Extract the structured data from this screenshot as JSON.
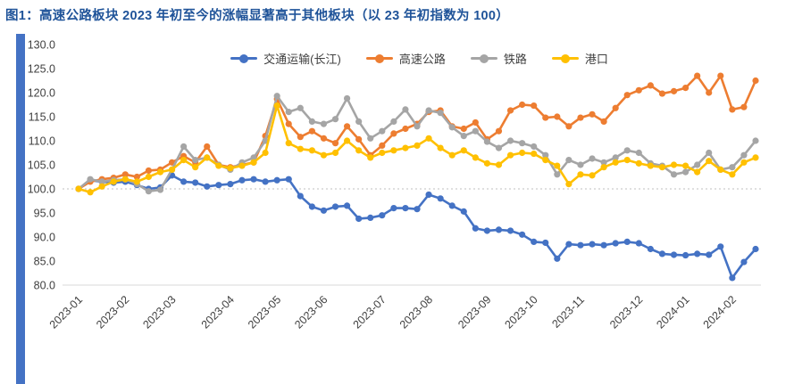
{
  "title": "图1：高速公路板块 2023 年初至今的涨幅显著高于其他板块（以 23 年初指数为 100）",
  "colors": {
    "title": "#1F5399",
    "accent_bar": "#4472C4",
    "axis_text": "#404040",
    "gridline": "#BFBFBF",
    "axis_line": "#D9D9D9"
  },
  "chart_data": {
    "type": "line",
    "title": "图1：高速公路板块 2023 年初至今的涨幅显著高于其他板块（以 23 年初指数为 100）",
    "xlabel": "",
    "ylabel": "",
    "ylim": [
      80,
      130
    ],
    "y_ticks": [
      "130.0",
      "125.0",
      "120.0",
      "115.0",
      "110.0",
      "105.0",
      "100.0",
      "95.0",
      "90.0",
      "85.0",
      "80.0"
    ],
    "y_tick_values": [
      130,
      125,
      120,
      115,
      110,
      105,
      100,
      95,
      90,
      85,
      80
    ],
    "gridline_at": 100,
    "grid": "dotted line at index 100 only",
    "legend_position": "top-center",
    "x_tick_labels": [
      "2023-01",
      "2023-02",
      "2023-03",
      "2023-04",
      "2023-05",
      "2023-06",
      "2023-07",
      "2023-08",
      "2023-09",
      "2023-10",
      "2023-11",
      "2023-12",
      "2024-01",
      "2024-02"
    ],
    "x_tick_indices": [
      0,
      4,
      8,
      13,
      17,
      21,
      26,
      30,
      35,
      39,
      43,
      48,
      52,
      56
    ],
    "n_points": 59,
    "x_unit": "week",
    "series": [
      {
        "name": "交通运输(长江)",
        "color": "#4472C4",
        "values": [
          100.0,
          101.8,
          101.5,
          101.3,
          101.5,
          100.8,
          100.0,
          100.3,
          102.8,
          101.5,
          101.3,
          100.5,
          100.8,
          101.0,
          101.8,
          102.0,
          101.5,
          101.8,
          102.0,
          98.5,
          96.3,
          95.5,
          96.3,
          96.5,
          93.8,
          94.0,
          94.5,
          96.0,
          96.0,
          95.8,
          98.8,
          98.0,
          96.5,
          95.3,
          91.8,
          91.3,
          91.5,
          91.3,
          90.5,
          89.0,
          88.8,
          85.5,
          88.5,
          88.3,
          88.5,
          88.3,
          88.7,
          89.0,
          88.7,
          87.5,
          86.5,
          86.3,
          86.2,
          86.5,
          86.3,
          88.0,
          81.5,
          84.8,
          87.5
        ]
      },
      {
        "name": "高速公路",
        "color": "#ED7D31",
        "values": [
          100.0,
          101.5,
          102.0,
          102.3,
          103.0,
          102.5,
          103.8,
          104.0,
          105.5,
          106.8,
          105.5,
          108.8,
          105.0,
          104.5,
          105.0,
          105.5,
          111.0,
          118.7,
          113.5,
          110.8,
          112.0,
          110.5,
          109.5,
          113.0,
          110.3,
          107.0,
          109.0,
          111.5,
          112.5,
          113.5,
          116.0,
          116.3,
          113.0,
          112.5,
          113.8,
          110.3,
          112.0,
          116.3,
          117.5,
          117.3,
          114.8,
          115.0,
          113.0,
          114.8,
          115.5,
          114.0,
          116.8,
          119.5,
          120.5,
          121.5,
          119.8,
          120.3,
          121.0,
          123.5,
          120.0,
          123.5,
          116.5,
          117.0,
          122.5
        ]
      },
      {
        "name": "铁路",
        "color": "#A5A5A5",
        "values": [
          100.0,
          102.0,
          101.5,
          101.8,
          102.0,
          101.0,
          99.5,
          99.8,
          104.0,
          108.8,
          106.0,
          106.5,
          105.0,
          104.0,
          105.5,
          106.5,
          110.0,
          119.3,
          116.0,
          116.8,
          114.0,
          113.5,
          114.5,
          118.8,
          114.0,
          110.5,
          112.0,
          114.0,
          116.5,
          113.0,
          116.3,
          115.8,
          112.8,
          111.0,
          112.0,
          109.8,
          108.5,
          110.0,
          109.5,
          108.8,
          107.0,
          103.0,
          106.0,
          105.0,
          106.3,
          105.5,
          106.5,
          108.0,
          107.5,
          105.3,
          104.8,
          103.0,
          103.5,
          105.0,
          107.5,
          104.0,
          104.5,
          107.0,
          110.0
        ]
      },
      {
        "name": "港口",
        "color": "#FFC000",
        "values": [
          100.0,
          99.3,
          100.5,
          101.5,
          102.0,
          101.5,
          102.5,
          103.5,
          104.0,
          106.0,
          104.5,
          106.5,
          104.8,
          104.3,
          104.8,
          105.5,
          107.5,
          117.3,
          109.5,
          108.3,
          108.0,
          107.0,
          107.5,
          110.0,
          108.0,
          106.5,
          107.5,
          108.0,
          108.5,
          109.0,
          110.5,
          108.5,
          107.0,
          108.0,
          106.5,
          105.3,
          105.0,
          107.0,
          107.5,
          107.3,
          106.0,
          104.8,
          101.0,
          103.0,
          102.8,
          104.5,
          105.5,
          106.0,
          105.3,
          104.8,
          104.5,
          105.0,
          104.8,
          103.5,
          105.8,
          104.0,
          103.0,
          105.5,
          106.5
        ]
      }
    ]
  }
}
